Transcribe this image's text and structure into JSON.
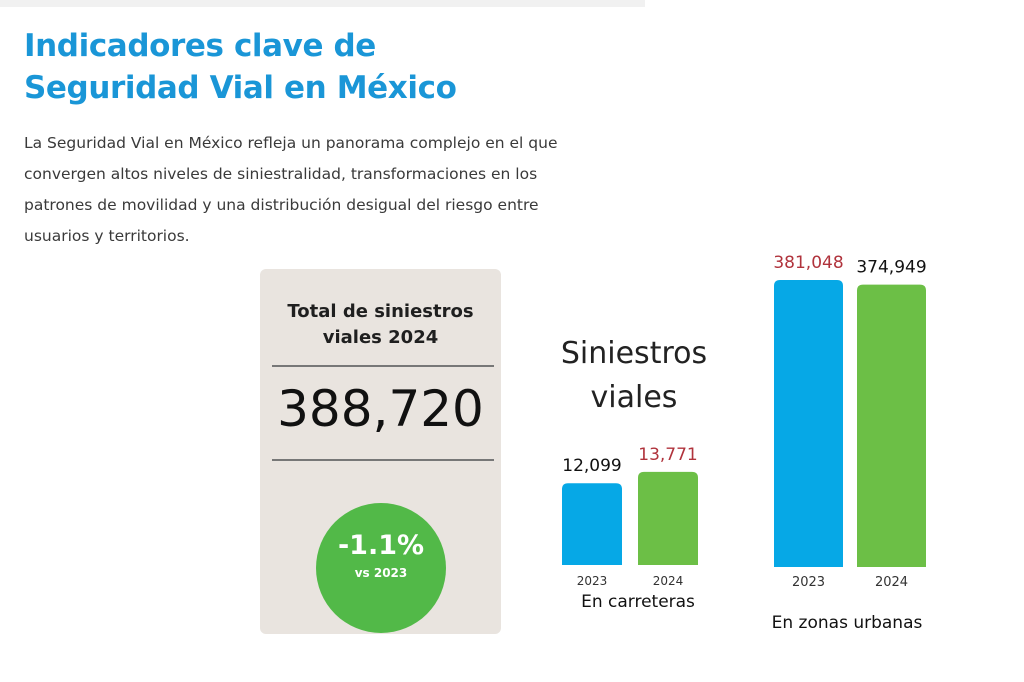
{
  "title_lines": [
    "Indicadores clave de",
    "Seguridad Vial en México"
  ],
  "intro_lines": [
    "La Seguridad Vial en México refleja un panorama complejo en el que",
    "convergen altos niveles de siniestralidad, transformaciones en los",
    "patrones de movilidad y una distribución desigual del riesgo entre",
    "usuarios y territorios."
  ],
  "total_card": {
    "label_lines": [
      "Total de siniestros",
      "viales 2024"
    ],
    "value": "388,720",
    "change": "-1.1%",
    "change_note": "vs 2023"
  },
  "colors": {
    "title": "#1a96d7",
    "card_background": "#e9e4df",
    "circle": "#52b948",
    "bar_2023": "#06a8e6",
    "bar_2024": "#6cbf46",
    "label_increase": "#b0333c",
    "label_normal": "#111111"
  },
  "chart_data": {
    "type": "bar",
    "title_lines": [
      "Siniestros",
      "viales"
    ],
    "groups": [
      {
        "name": "En carreteras",
        "categories": [
          "2023",
          "2024"
        ],
        "values": [
          12099,
          13771
        ],
        "value_labels": [
          "12,099",
          "13,771"
        ],
        "value_label_colors": [
          "#111111",
          "#b0333c"
        ],
        "ylim": [
          0,
          14200
        ]
      },
      {
        "name": "En zonas urbanas",
        "categories": [
          "2023",
          "2024"
        ],
        "values": [
          381048,
          374949
        ],
        "value_labels": [
          "381,048",
          "374,949"
        ],
        "value_label_colors": [
          "#b0333c",
          "#111111"
        ],
        "ylim": [
          0,
          381048
        ]
      }
    ]
  }
}
